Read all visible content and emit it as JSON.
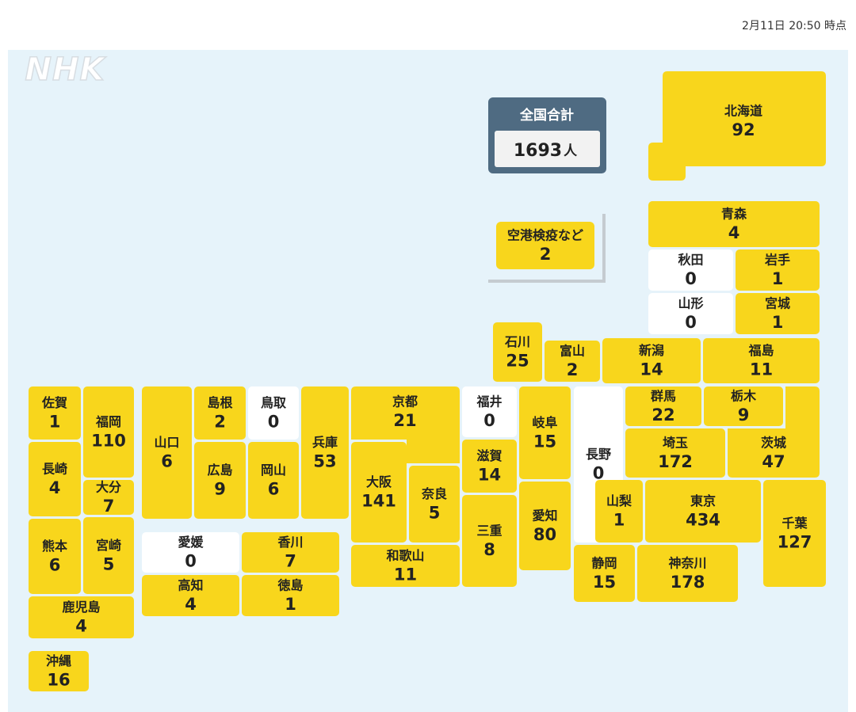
{
  "timestamp": "2月11日 20:50 時点",
  "logo": "NHK",
  "total": {
    "label": "全国合計",
    "value": 1693,
    "unit": "人"
  },
  "airport": {
    "label": "空港検疫など",
    "value": 2
  },
  "prefectures": [
    {
      "name": "北海道",
      "value": 92
    },
    {
      "name": "青森",
      "value": 4
    },
    {
      "name": "秋田",
      "value": 0
    },
    {
      "name": "岩手",
      "value": 1
    },
    {
      "name": "山形",
      "value": 0
    },
    {
      "name": "宮城",
      "value": 1
    },
    {
      "name": "石川",
      "value": 25
    },
    {
      "name": "富山",
      "value": 2
    },
    {
      "name": "新潟",
      "value": 14
    },
    {
      "name": "福島",
      "value": 11
    },
    {
      "name": "佐賀",
      "value": 1
    },
    {
      "name": "福岡",
      "value": 110
    },
    {
      "name": "長崎",
      "value": 4
    },
    {
      "name": "大分",
      "value": 7
    },
    {
      "name": "熊本",
      "value": 6
    },
    {
      "name": "宮崎",
      "value": 5
    },
    {
      "name": "鹿児島",
      "value": 4
    },
    {
      "name": "沖縄",
      "value": 16
    },
    {
      "name": "山口",
      "value": 6
    },
    {
      "name": "島根",
      "value": 2
    },
    {
      "name": "鳥取",
      "value": 0
    },
    {
      "name": "広島",
      "value": 9
    },
    {
      "name": "岡山",
      "value": 6
    },
    {
      "name": "兵庫",
      "value": 53
    },
    {
      "name": "愛媛",
      "value": 0
    },
    {
      "name": "香川",
      "value": 7
    },
    {
      "name": "高知",
      "value": 4
    },
    {
      "name": "徳島",
      "value": 1
    },
    {
      "name": "京都",
      "value": 21
    },
    {
      "name": "大阪",
      "value": 141
    },
    {
      "name": "奈良",
      "value": 5
    },
    {
      "name": "和歌山",
      "value": 11
    },
    {
      "name": "福井",
      "value": 0
    },
    {
      "name": "滋賀",
      "value": 14
    },
    {
      "name": "三重",
      "value": 8
    },
    {
      "name": "岐阜",
      "value": 15
    },
    {
      "name": "愛知",
      "value": 80
    },
    {
      "name": "長野",
      "value": 0
    },
    {
      "name": "群馬",
      "value": 22
    },
    {
      "name": "栃木",
      "value": 9
    },
    {
      "name": "茨城",
      "value": 47
    },
    {
      "name": "埼玉",
      "value": 172
    },
    {
      "name": "山梨",
      "value": 1
    },
    {
      "name": "東京",
      "value": 434
    },
    {
      "name": "千葉",
      "value": 127
    },
    {
      "name": "静岡",
      "value": 15
    },
    {
      "name": "神奈川",
      "value": 178
    }
  ]
}
